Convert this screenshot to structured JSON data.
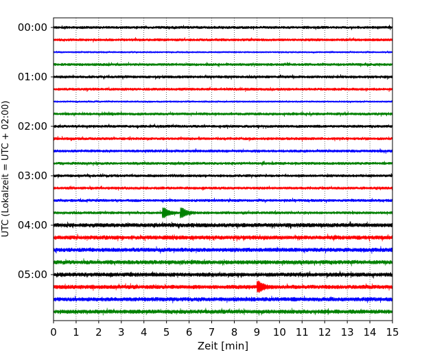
{
  "chart_data": {
    "type": "line",
    "subtype": "helicorder",
    "title": "",
    "xlabel": "Zeit  [min]",
    "ylabel": "UTC (Lokalzeit = UTC + 02:00)",
    "xlim": [
      0,
      15
    ],
    "x_ticks": [
      0,
      1,
      2,
      3,
      4,
      5,
      6,
      7,
      8,
      9,
      10,
      11,
      12,
      13,
      14,
      15
    ],
    "y_tick_labels": [
      "00:00",
      "01:00",
      "02:00",
      "03:00",
      "04:00",
      "05:00"
    ],
    "grid": "vertical dotted",
    "line_minutes": 15,
    "trace_colors": [
      "#000000",
      "#ff0000",
      "#0000ff",
      "#008000"
    ],
    "traces": [
      {
        "start": "00:00",
        "color": "#000000",
        "level": "moderate"
      },
      {
        "start": "00:15",
        "color": "#ff0000",
        "level": "moderate"
      },
      {
        "start": "00:30",
        "color": "#0000ff",
        "level": "low"
      },
      {
        "start": "00:45",
        "color": "#008000",
        "level": "moderate"
      },
      {
        "start": "01:00",
        "color": "#000000",
        "level": "moderate"
      },
      {
        "start": "01:15",
        "color": "#ff0000",
        "level": "moderate"
      },
      {
        "start": "01:30",
        "color": "#0000ff",
        "level": "low"
      },
      {
        "start": "01:45",
        "color": "#008000",
        "level": "moderate"
      },
      {
        "start": "02:00",
        "color": "#000000",
        "level": "moderate"
      },
      {
        "start": "02:15",
        "color": "#ff0000",
        "level": "moderate"
      },
      {
        "start": "02:30",
        "color": "#0000ff",
        "level": "moderate"
      },
      {
        "start": "02:45",
        "color": "#008000",
        "level": "moderate"
      },
      {
        "start": "03:00",
        "color": "#000000",
        "level": "moderate"
      },
      {
        "start": "03:15",
        "color": "#ff0000",
        "level": "moderate"
      },
      {
        "start": "03:30",
        "color": "#0000ff",
        "level": "moderate"
      },
      {
        "start": "03:45",
        "color": "#008000",
        "level": "moderate",
        "event_minutes": [
          4.9,
          5.7
        ]
      },
      {
        "start": "04:00",
        "color": "#000000",
        "level": "high"
      },
      {
        "start": "04:15",
        "color": "#ff0000",
        "level": "high"
      },
      {
        "start": "04:30",
        "color": "#0000ff",
        "level": "high"
      },
      {
        "start": "04:45",
        "color": "#008000",
        "level": "high"
      },
      {
        "start": "05:00",
        "color": "#000000",
        "level": "high"
      },
      {
        "start": "05:15",
        "color": "#ff0000",
        "level": "high",
        "event_minutes": [
          9.1
        ]
      },
      {
        "start": "05:30",
        "color": "#0000ff",
        "level": "high"
      },
      {
        "start": "05:45",
        "color": "#008000",
        "level": "high"
      }
    ]
  }
}
